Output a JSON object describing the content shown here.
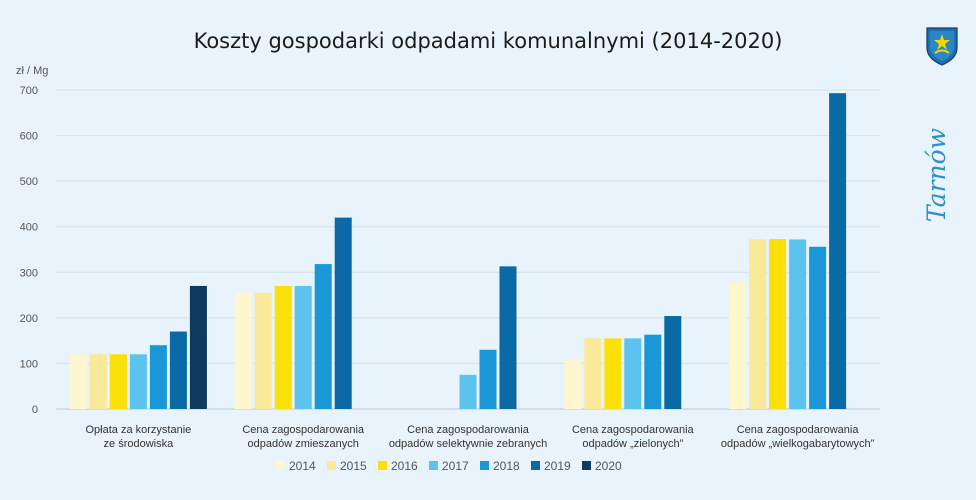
{
  "chart_data": {
    "type": "bar",
    "title": "Koszty gospodarki odpadami komunalnymi (2014-2020)",
    "ylabel": "zł / Mg",
    "ylim": [
      0,
      700
    ],
    "yticks": [
      0,
      100,
      200,
      300,
      400,
      500,
      600,
      700
    ],
    "categories": [
      [
        "Opłata za korzystanie",
        "ze środowiska"
      ],
      [
        "Cena zagospodarowania",
        "odpadów zmieszanych"
      ],
      [
        "Cena zagospodarowania",
        "odpadów selektywnie zebranych"
      ],
      [
        "Cena zagospodarowania",
        "odpadów „zielonych”"
      ],
      [
        "Cena zagospodarowania",
        "odpadów „wielkogabarytowych”"
      ]
    ],
    "series": [
      {
        "name": "2014",
        "color": "#fdf6cf",
        "values": [
          120,
          255,
          null,
          108,
          278
        ]
      },
      {
        "name": "2015",
        "color": "#fbe99a",
        "values": [
          120,
          255,
          null,
          155,
          373
        ]
      },
      {
        "name": "2016",
        "color": "#fbe00a",
        "values": [
          120,
          270,
          null,
          155,
          373
        ]
      },
      {
        "name": "2017",
        "color": "#5cc3ee",
        "values": [
          120,
          270,
          75,
          155,
          372
        ]
      },
      {
        "name": "2018",
        "color": "#1a97d6",
        "values": [
          140,
          318,
          130,
          163,
          356
        ]
      },
      {
        "name": "2019",
        "color": "#0a6aa5",
        "values": [
          170,
          420,
          313,
          204,
          693
        ]
      },
      {
        "name": "2020",
        "color": "#0d3b5e",
        "values": [
          270,
          null,
          null,
          null,
          null
        ]
      }
    ],
    "legend_position": "bottom",
    "grid": true
  },
  "brand": {
    "logo_icon": "tarnow-crest-icon",
    "text": "Tarnów"
  }
}
